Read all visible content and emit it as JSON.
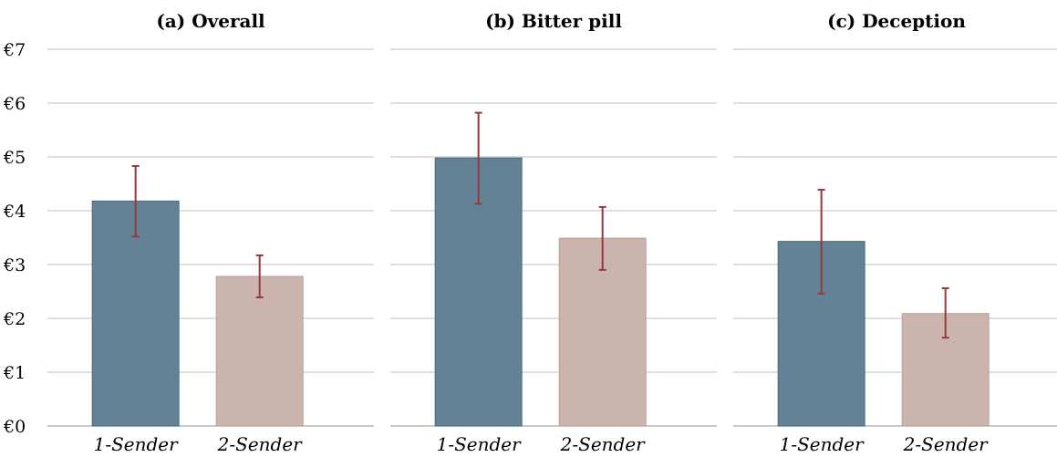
{
  "chart_data": {
    "type": "bar",
    "y_axis": {
      "range": [
        0,
        7
      ],
      "tick_values": [
        0,
        1,
        2,
        3,
        4,
        5,
        6,
        7
      ],
      "tick_labels": [
        "€0",
        "€1",
        "€2",
        "€3",
        "€4",
        "€5",
        "€6",
        "€7"
      ]
    },
    "grid": true,
    "colors": {
      "1-Sender": "#648296",
      "2-Sender": "#cbb3ae",
      "error_bar": "#953a3a"
    },
    "panels": [
      {
        "title": "(a) Overall",
        "categories": [
          "1-Sender",
          "2-Sender"
        ],
        "values": [
          4.18,
          2.78
        ],
        "error_low": [
          3.52,
          2.39
        ],
        "error_high": [
          4.83,
          3.17
        ]
      },
      {
        "title": "(b) Bitter pill",
        "categories": [
          "1-Sender",
          "2-Sender"
        ],
        "values": [
          4.98,
          3.49
        ],
        "error_low": [
          4.13,
          2.9
        ],
        "error_high": [
          5.82,
          4.07
        ]
      },
      {
        "title": "(c) Deception",
        "categories": [
          "1-Sender",
          "2-Sender"
        ],
        "values": [
          3.43,
          2.09
        ],
        "error_low": [
          2.46,
          1.64
        ],
        "error_high": [
          4.39,
          2.56
        ]
      }
    ]
  }
}
